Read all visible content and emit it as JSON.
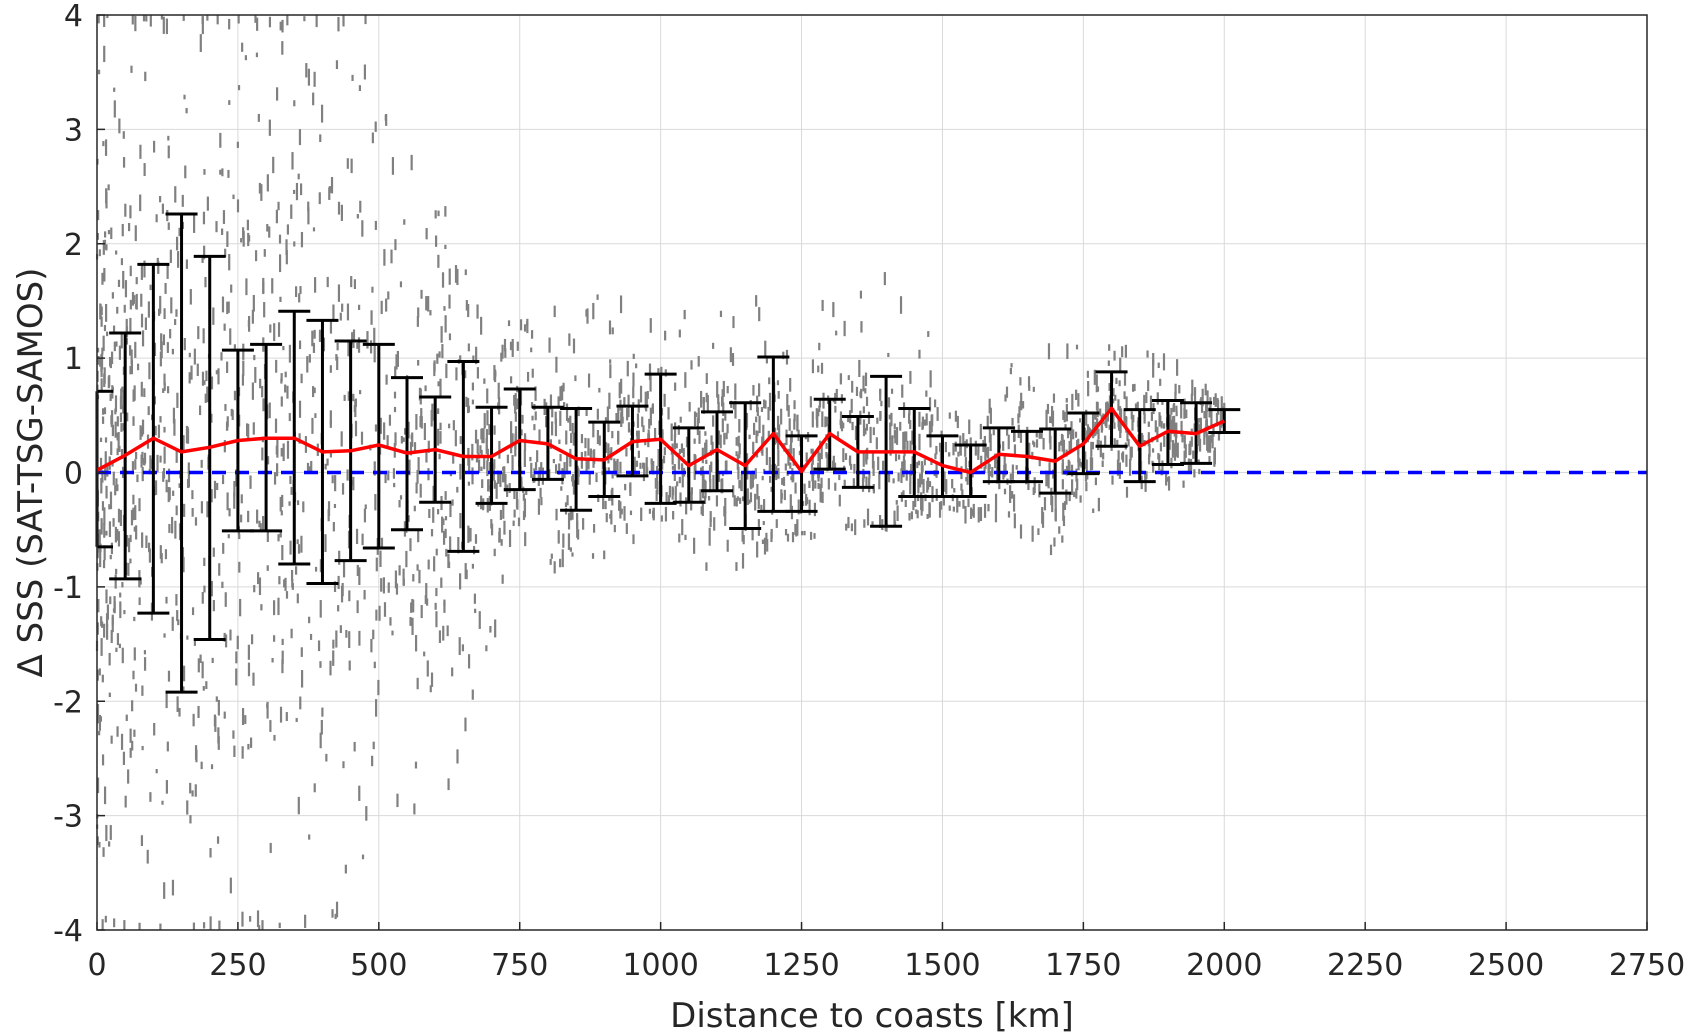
{
  "chart_data": {
    "type": "scatter",
    "title": "",
    "xlabel": "Distance to coasts [km]",
    "ylabel": "Δ SSS (SAT-TSG-SAMOS)",
    "xlim": [
      0,
      2750
    ],
    "ylim": [
      -4,
      4
    ],
    "grid": true,
    "legend": "none",
    "x_tick_labels": [
      "0",
      "250",
      "500",
      "750",
      "1000",
      "1250",
      "1500",
      "1750",
      "2000",
      "2250",
      "2500",
      "2750"
    ],
    "y_tick_labels": [
      "-4",
      "-3",
      "-2",
      "-1",
      "0",
      "1",
      "2",
      "3",
      "4"
    ],
    "colors": {
      "scatter": "#808080",
      "mean_line": "#ff0000",
      "zero_line": "#0000ff",
      "error_bars": "#000000",
      "grid": "#d9d9d9",
      "axes": "#262626"
    },
    "zero_reference": 0,
    "scatter_envelope": {
      "description_free": true,
      "x": [
        0,
        100,
        200,
        300,
        400,
        500,
        600,
        700,
        800,
        900,
        1000,
        1100,
        1200,
        1300,
        1400,
        1500,
        1600,
        1700,
        1800,
        1900,
        2000
      ],
      "lower": [
        -4,
        -4,
        -4,
        -4,
        -4,
        -3.5,
        -3.2,
        -1.4,
        -0.9,
        -0.8,
        -0.4,
        -0.95,
        -0.6,
        -0.55,
        -0.5,
        -0.35,
        -0.4,
        -0.7,
        -0.2,
        -0.15,
        0.0
      ],
      "upper": [
        4,
        4,
        4,
        4,
        4,
        4,
        2.5,
        1.3,
        1.4,
        1.6,
        1.4,
        1.4,
        1.6,
        1.5,
        1.7,
        1.1,
        1.0,
        1.1,
        1.1,
        1.0,
        0.6
      ]
    },
    "series": [
      {
        "kind": "mean_with_error_bars",
        "x": [
          0,
          50,
          100,
          150,
          200,
          250,
          300,
          350,
          400,
          450,
          500,
          550,
          600,
          650,
          700,
          750,
          800,
          850,
          900,
          950,
          1000,
          1050,
          1100,
          1150,
          1200,
          1250,
          1300,
          1350,
          1400,
          1450,
          1500,
          1550,
          1600,
          1650,
          1700,
          1750,
          1800,
          1850,
          1900,
          1950,
          2000
        ],
        "mean": [
          0.02,
          0.15,
          0.3,
          0.18,
          0.22,
          0.28,
          0.3,
          0.3,
          0.18,
          0.19,
          0.24,
          0.17,
          0.2,
          0.14,
          0.14,
          0.28,
          0.25,
          0.12,
          0.11,
          0.27,
          0.29,
          0.06,
          0.2,
          0.06,
          0.34,
          0.01,
          0.34,
          0.18,
          0.18,
          0.18,
          0.06,
          0.0,
          0.16,
          0.14,
          0.1,
          0.25,
          0.56,
          0.23,
          0.36,
          0.34,
          0.45
        ],
        "upper": [
          0.71,
          1.22,
          1.82,
          2.26,
          1.89,
          1.07,
          1.12,
          1.41,
          1.33,
          1.15,
          1.12,
          0.83,
          0.66,
          0.97,
          0.57,
          0.73,
          0.57,
          0.56,
          0.44,
          0.58,
          0.86,
          0.39,
          0.53,
          0.61,
          1.01,
          0.32,
          0.64,
          0.49,
          0.84,
          0.56,
          0.32,
          0.24,
          0.39,
          0.36,
          0.38,
          0.52,
          0.88,
          0.55,
          0.63,
          0.61,
          0.55
        ],
        "lower": [
          -0.65,
          -0.93,
          -1.23,
          -1.92,
          -1.46,
          -0.51,
          -0.51,
          -0.8,
          -0.97,
          -0.77,
          -0.66,
          -0.5,
          -0.26,
          -0.69,
          -0.27,
          -0.15,
          -0.06,
          -0.33,
          -0.21,
          -0.03,
          -0.27,
          -0.26,
          -0.16,
          -0.49,
          -0.34,
          -0.34,
          0.03,
          -0.13,
          -0.47,
          -0.21,
          -0.21,
          -0.21,
          -0.08,
          -0.08,
          -0.18,
          -0.01,
          0.23,
          -0.08,
          0.07,
          0.08,
          0.35
        ]
      }
    ]
  }
}
